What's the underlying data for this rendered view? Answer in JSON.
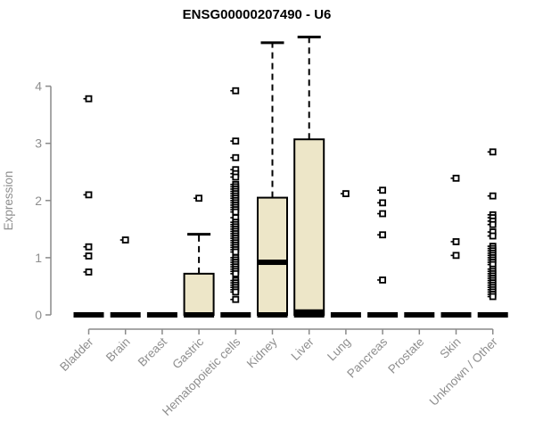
{
  "chart_data": {
    "type": "boxplot",
    "title": "ENSG00000207490 - U6",
    "ylabel": "Expression",
    "ylim": [
      0,
      4.9
    ],
    "yticks": [
      0,
      1,
      2,
      3,
      4
    ],
    "grid": false,
    "legend": "none",
    "categories": [
      "Bladder",
      "Brain",
      "Breast",
      "Gastric",
      "Hematopoietic cells",
      "Kidney",
      "Liver",
      "Lung",
      "Pancreas",
      "Prostate",
      "Skin",
      "Unknown / Other"
    ],
    "series": [
      {
        "name": "Bladder",
        "q1": 0,
        "median": 0,
        "q3": 0,
        "whisker_low": 0,
        "whisker_high": 0,
        "outliers": [
          3.78,
          2.1,
          1.19,
          1.03,
          0.75
        ]
      },
      {
        "name": "Brain",
        "q1": 0,
        "median": 0,
        "q3": 0,
        "whisker_low": 0,
        "whisker_high": 0,
        "outliers": [
          1.31
        ]
      },
      {
        "name": "Breast",
        "q1": 0,
        "median": 0,
        "q3": 0,
        "whisker_low": 0,
        "whisker_high": 0,
        "outliers": []
      },
      {
        "name": "Gastric",
        "q1": 0,
        "median": 0,
        "q3": 0.72,
        "whisker_low": 0,
        "whisker_high": 1.41,
        "outliers": [
          2.04
        ]
      },
      {
        "name": "Hematopoietic cells",
        "q1": 0,
        "median": 0,
        "q3": 0,
        "whisker_low": 0,
        "whisker_high": 0,
        "outliers": [
          3.92,
          3.04,
          2.75,
          2.54,
          2.47,
          2.41,
          2.28,
          2.24,
          2.2,
          2.16,
          2.12,
          2.08,
          2.04,
          2.0,
          1.96,
          1.92,
          1.88,
          1.84,
          1.8,
          1.7,
          1.62,
          1.58,
          1.54,
          1.5,
          1.46,
          1.42,
          1.38,
          1.34,
          1.3,
          1.26,
          1.22,
          1.18,
          1.14,
          1.1,
          1.0,
          0.96,
          0.92,
          0.88,
          0.84,
          0.8,
          0.76,
          0.72,
          0.6,
          0.56,
          0.52,
          0.48,
          0.44,
          0.4,
          0.27
        ]
      },
      {
        "name": "Kidney",
        "q1": 0,
        "median": 0.92,
        "q3": 2.05,
        "whisker_low": 0,
        "whisker_high": 4.76,
        "outliers": []
      },
      {
        "name": "Liver",
        "q1": 0,
        "median": 0.05,
        "q3": 3.07,
        "whisker_low": 0,
        "whisker_high": 4.86,
        "outliers": []
      },
      {
        "name": "Lung",
        "q1": 0,
        "median": 0,
        "q3": 0,
        "whisker_low": 0,
        "whisker_high": 0,
        "outliers": [
          2.12
        ]
      },
      {
        "name": "Pancreas",
        "q1": 0,
        "median": 0,
        "q3": 0,
        "whisker_low": 0,
        "whisker_high": 0,
        "outliers": [
          2.18,
          1.96,
          1.77,
          1.4,
          0.61
        ]
      },
      {
        "name": "Prostate",
        "q1": 0,
        "median": 0,
        "q3": 0,
        "whisker_low": 0,
        "whisker_high": 0,
        "outliers": []
      },
      {
        "name": "Skin",
        "q1": 0,
        "median": 0,
        "q3": 0,
        "whisker_low": 0,
        "whisker_high": 0,
        "outliers": [
          2.39,
          1.28,
          1.04
        ]
      },
      {
        "name": "Unknown / Other",
        "q1": 0,
        "median": 0,
        "q3": 0,
        "whisker_low": 0,
        "whisker_high": 0,
        "outliers": [
          2.85,
          2.08,
          1.75,
          1.7,
          1.64,
          1.58,
          1.45,
          1.38,
          1.2,
          1.16,
          1.12,
          1.08,
          1.04,
          1.0,
          0.96,
          0.92,
          0.88,
          0.8,
          0.76,
          0.72,
          0.68,
          0.64,
          0.6,
          0.56,
          0.52,
          0.48,
          0.44,
          0.4,
          0.36,
          0.32
        ]
      }
    ],
    "colors": {
      "box_fill": "#ede6c8",
      "box_stroke": "#000000",
      "axis": "#8a8a8a",
      "label_text": "#8e8e8e",
      "title_text": "#000000",
      "outlier_fill": "#ffffff"
    }
  }
}
